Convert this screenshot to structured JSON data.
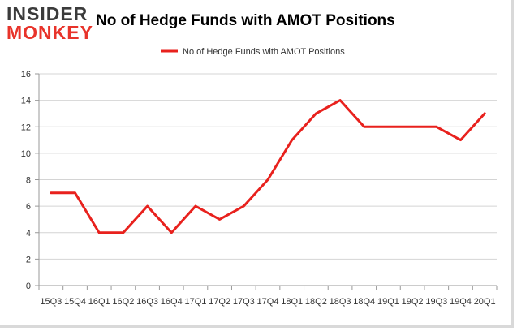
{
  "logo": {
    "line1": "INSIDER",
    "line2": "MONKEY",
    "colors": {
      "dark": "#3b3b3b",
      "red": "#e8332a"
    }
  },
  "chart_data": {
    "type": "line",
    "title": "No of Hedge Funds with AMOT Positions",
    "xlabel": "",
    "ylabel": "",
    "categories": [
      "2015Q3",
      "2015Q4",
      "2016Q1",
      "2016Q2",
      "2016Q3",
      "2016Q4",
      "2017Q1",
      "2017Q2",
      "2017Q3",
      "2017Q4",
      "2018Q1",
      "2018Q2",
      "2018Q3",
      "2018Q4",
      "2019Q1",
      "2019Q2",
      "2019Q3",
      "2019Q4",
      "2020Q1"
    ],
    "tick_labels": [
      "15Q3",
      "15Q4",
      "16Q1",
      "16Q2",
      "16Q3",
      "16Q4",
      "17Q1",
      "17Q2",
      "17Q3",
      "17Q4",
      "18Q1",
      "18Q2",
      "18Q3",
      "18Q4",
      "19Q1",
      "19Q2",
      "19Q3",
      "19Q4",
      "20Q1"
    ],
    "series": [
      {
        "name": "No of Hedge Funds with AMOT Positions",
        "color": "#e8211d",
        "values": [
          7,
          7,
          4,
          4,
          6,
          4,
          6,
          5,
          6,
          8,
          11,
          13,
          14,
          12,
          12,
          12,
          12,
          11,
          13
        ]
      }
    ],
    "ylim": [
      0,
      16
    ],
    "yticks": [
      0,
      2,
      4,
      6,
      8,
      10,
      12,
      14,
      16
    ],
    "grid": true,
    "legend": "top-center"
  }
}
